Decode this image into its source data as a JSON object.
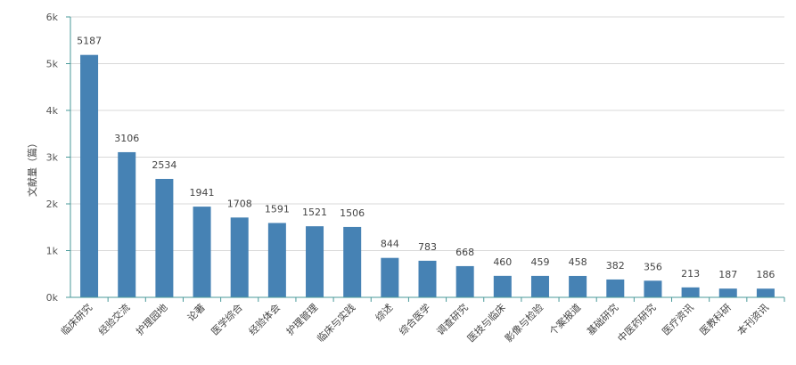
{
  "chart_data": {
    "type": "bar",
    "title": "",
    "xlabel": "",
    "ylabel": "文献量（篇）",
    "ylim": [
      0,
      6000
    ],
    "yticks": [
      {
        "value": 0,
        "label": "0k"
      },
      {
        "value": 1000,
        "label": "1k"
      },
      {
        "value": 2000,
        "label": "2k"
      },
      {
        "value": 3000,
        "label": "3k"
      },
      {
        "value": 4000,
        "label": "4k"
      },
      {
        "value": 5000,
        "label": "5k"
      },
      {
        "value": 6000,
        "label": "6k"
      }
    ],
    "grid": true,
    "categories": [
      "临床研究",
      "经验交流",
      "护理园地",
      "论著",
      "医学综合",
      "经验体会",
      "护理管理",
      "临床与实践",
      "综述",
      "综合医学",
      "调查研究",
      "医技与临床",
      "影像与检验",
      "个案报道",
      "基础研究",
      "中医药研究",
      "医疗资讯",
      "医教科研",
      "本刊资讯"
    ],
    "values": [
      5187,
      3106,
      2534,
      1941,
      1708,
      1591,
      1521,
      1506,
      844,
      783,
      668,
      460,
      459,
      458,
      382,
      356,
      213,
      187,
      186
    ],
    "colors": {
      "bar": "#4682b4",
      "axis": "#4a9a9a",
      "grid": "#d8d8d8"
    }
  }
}
